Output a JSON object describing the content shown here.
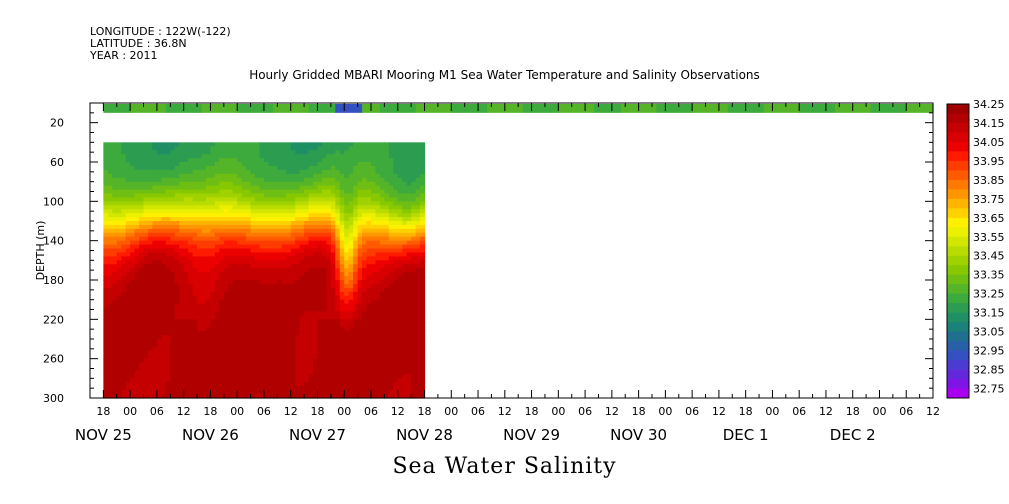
{
  "header": {
    "longitude": "LONGITUDE : 122W(-122)",
    "latitude": "LATITUDE : 36.8N",
    "year": "YEAR : 2011"
  },
  "chart_data": {
    "type": "heatmap",
    "title": "Hourly Gridded MBARI Mooring M1 Sea Water Temperature and Salinity Observations",
    "xlabel": "Sea Water Salinity",
    "ylabel": "DEPTH (m)",
    "x_range_hours": [
      -9,
      180
    ],
    "y_range": [
      300,
      0
    ],
    "y_ticks": [
      20,
      60,
      100,
      140,
      180,
      220,
      260,
      300
    ],
    "x_hour_tick_labels": [
      "18",
      "00",
      "06",
      "12",
      "18",
      "00",
      "06",
      "12",
      "18",
      "00",
      "06",
      "12",
      "18",
      "00",
      "06",
      "12",
      "18",
      "00",
      "06",
      "12",
      "18",
      "00",
      "06",
      "12",
      "18",
      "00",
      "06",
      "12",
      "18",
      "00",
      "06",
      "12"
    ],
    "x_day_labels": [
      "NOV 25",
      "NOV 26",
      "NOV 27",
      "NOV 28",
      "NOV 29",
      "NOV 30",
      "DEC  1",
      "DEC  2"
    ],
    "data_extent": {
      "surface_band": {
        "depth_range": [
          1,
          10
        ],
        "salinity": 33.3
      },
      "profile": {
        "depth_range": [
          40,
          300
        ],
        "time_range": [
          "NOV 25 18",
          "NOV 28 18"
        ]
      }
    },
    "colorbar": {
      "levels": [
        34.25,
        34.2,
        34.15,
        34.1,
        34.05,
        34.0,
        33.95,
        33.9,
        33.85,
        33.8,
        33.75,
        33.7,
        33.65,
        33.6,
        33.55,
        33.5,
        33.45,
        33.4,
        33.35,
        33.3,
        33.25,
        33.2,
        33.15,
        33.1,
        33.05,
        33.0,
        32.95,
        32.9,
        32.85,
        32.8,
        32.75
      ],
      "labels": [
        "34.25",
        "34.15",
        "34.05",
        "33.95",
        "33.85",
        "33.75",
        "33.65",
        "33.55",
        "33.45",
        "33.35",
        "33.25",
        "33.15",
        "33.05",
        "32.95",
        "32.85",
        "32.75"
      ],
      "colors": [
        "#9e0000",
        "#b00000",
        "#c40000",
        "#d80000",
        "#ec0000",
        "#ff1a00",
        "#ff3c00",
        "#ff5a00",
        "#ff7800",
        "#ff9600",
        "#ffb400",
        "#ffd200",
        "#fff000",
        "#eaf000",
        "#d2e600",
        "#b9dc00",
        "#a0d200",
        "#87c800",
        "#6ebe14",
        "#55b428",
        "#3caa3c",
        "#2c9c50",
        "#1f8f64",
        "#1a8278",
        "#1f7090",
        "#2860a8",
        "#3550c0",
        "#4a3cd2",
        "#6428dc",
        "#7e14e6",
        "#aa00f0"
      ]
    },
    "grid": false
  }
}
